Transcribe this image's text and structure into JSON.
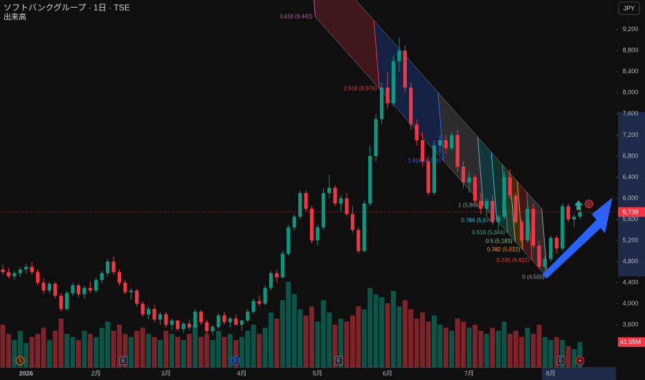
{
  "chart_data": {
    "type": "candlestick",
    "title": "ソフトバンクグループ · 1日 · TSE",
    "volume_title": "出来高",
    "currency": "JPY",
    "categories": [
      null,
      null,
      null,
      null,
      "2026",
      null,
      null,
      null,
      null,
      null,
      null,
      null,
      null,
      null,
      null,
      null,
      "2月",
      null,
      null,
      null,
      null,
      null,
      null,
      null,
      null,
      null,
      null,
      null,
      "3月",
      null,
      null,
      null,
      null,
      null,
      null,
      null,
      null,
      null,
      null,
      null,
      null,
      "4月",
      null,
      null,
      null,
      null,
      null,
      null,
      null,
      null,
      null,
      null,
      null,
      null,
      "5月",
      null,
      null,
      null,
      null,
      null,
      null,
      null,
      null,
      null,
      null,
      null,
      "6月",
      null,
      null,
      null,
      null,
      null,
      null,
      null,
      null,
      null,
      null,
      null,
      null,
      null,
      "7月",
      null,
      null,
      null,
      null,
      null,
      null,
      null,
      null,
      null,
      null,
      null,
      null,
      null,
      "8月",
      null,
      null,
      null,
      null,
      null
    ],
    "open": [
      4650,
      4600,
      4520,
      4580,
      4650,
      4700,
      4600,
      4400,
      4250,
      4380,
      4150,
      3900,
      4200,
      4350,
      4180,
      4300,
      4250,
      4450,
      4580,
      4800,
      4600,
      4400,
      4220,
      4250,
      4000,
      3800,
      3900,
      3700,
      3800,
      3600,
      3680,
      3520,
      3620,
      3550,
      3850,
      3650,
      3480,
      3560,
      3780,
      3650,
      3720,
      3600,
      3680,
      3850,
      4050,
      4000,
      4300,
      4580,
      4500,
      4950,
      5450,
      5650,
      6100,
      5800,
      5200,
      5450,
      6100,
      6200,
      5900,
      6000,
      5700,
      5400,
      5000,
      5900,
      6800,
      7500,
      8100,
      7800,
      8600,
      8800,
      8100,
      7400,
      7100,
      6700,
      6100,
      7000,
      7100,
      6950,
      7200,
      6600,
      6300,
      6400,
      5950,
      5800,
      5950,
      5550,
      5650,
      6400,
      6050,
      5550,
      5200,
      5800,
      5100,
      4700,
      4850,
      5250,
      5050,
      5850,
      5600,
      5650
    ],
    "high": [
      4750,
      4680,
      4620,
      4700,
      4760,
      4800,
      4650,
      4480,
      4420,
      4420,
      4200,
      4250,
      4400,
      4380,
      4350,
      4420,
      4500,
      4620,
      4850,
      4900,
      4650,
      4450,
      4300,
      4280,
      4050,
      3950,
      3980,
      3850,
      3850,
      3720,
      3700,
      3650,
      3700,
      3900,
      3880,
      3700,
      3600,
      3820,
      3850,
      3750,
      3800,
      3700,
      3900,
      4100,
      4150,
      4350,
      4620,
      4650,
      5000,
      5500,
      5700,
      6150,
      6150,
      5850,
      5500,
      6200,
      6450,
      6250,
      6050,
      6100,
      5850,
      5450,
      5950,
      7000,
      7600,
      8200,
      8400,
      8700,
      9050,
      8900,
      8200,
      7500,
      7250,
      6800,
      7100,
      7200,
      7200,
      7250,
      7300,
      6700,
      6500,
      6450,
      6100,
      6000,
      6050,
      5700,
      6500,
      6550,
      6100,
      5600,
      5950,
      5900,
      5200,
      4900,
      5300,
      5300,
      5900,
      5900,
      5700,
      5800
    ],
    "low": [
      4550,
      4480,
      4450,
      4500,
      4580,
      4550,
      4350,
      4180,
      4200,
      4100,
      3850,
      3880,
      4150,
      4120,
      4100,
      4200,
      4200,
      4380,
      4520,
      4550,
      4350,
      4180,
      4080,
      3950,
      3750,
      3700,
      3650,
      3600,
      3550,
      3500,
      3480,
      3450,
      3500,
      3530,
      3600,
      3420,
      3400,
      3520,
      3600,
      3550,
      3580,
      3480,
      3650,
      3820,
      3950,
      3980,
      4250,
      4400,
      4480,
      4900,
      5380,
      5600,
      5750,
      5150,
      5100,
      5400,
      6000,
      5850,
      5750,
      5650,
      5350,
      4950,
      4980,
      5850,
      6700,
      7400,
      7700,
      7750,
      8400,
      8000,
      7300,
      7000,
      6600,
      6050,
      6050,
      6850,
      6850,
      6900,
      6500,
      6200,
      6100,
      5900,
      5700,
      5650,
      5500,
      5400,
      5600,
      6000,
      5500,
      5150,
      5150,
      5050,
      4650,
      4500,
      4800,
      4950,
      5000,
      5550,
      5450,
      5600
    ],
    "close": [
      4600,
      4520,
      4580,
      4650,
      4700,
      4600,
      4400,
      4250,
      4380,
      4150,
      3900,
      4200,
      4350,
      4180,
      4300,
      4250,
      4450,
      4580,
      4800,
      4600,
      4400,
      4220,
      4250,
      4000,
      3800,
      3900,
      3700,
      3800,
      3600,
      3680,
      3520,
      3620,
      3550,
      3850,
      3650,
      3480,
      3560,
      3780,
      3650,
      3720,
      3600,
      3680,
      3850,
      4050,
      4000,
      4300,
      4580,
      4500,
      4950,
      5450,
      5650,
      6100,
      5800,
      5200,
      5450,
      6100,
      6200,
      5900,
      6000,
      5700,
      5400,
      5000,
      5900,
      6800,
      7500,
      8100,
      7800,
      8600,
      8800,
      8100,
      7400,
      7100,
      6700,
      6100,
      7000,
      7100,
      6950,
      7200,
      6600,
      6300,
      6400,
      5950,
      5800,
      5950,
      5550,
      5650,
      6400,
      6050,
      5550,
      5200,
      5800,
      5100,
      4700,
      4850,
      5250,
      5050,
      5850,
      5600,
      5650,
      5739
    ],
    "volume": [
      70,
      55,
      45,
      60,
      40,
      50,
      55,
      65,
      45,
      60,
      80,
      55,
      50,
      45,
      60,
      55,
      50,
      65,
      75,
      60,
      70,
      55,
      50,
      60,
      65,
      55,
      50,
      45,
      60,
      55,
      50,
      45,
      55,
      70,
      50,
      55,
      45,
      60,
      50,
      55,
      45,
      50,
      60,
      70,
      55,
      65,
      90,
      80,
      110,
      140,
      120,
      95,
      85,
      100,
      75,
      110,
      90,
      70,
      80,
      75,
      85,
      100,
      95,
      130,
      120,
      115,
      105,
      125,
      100,
      110,
      95,
      80,
      90,
      75,
      85,
      70,
      65,
      60,
      80,
      75,
      65,
      70,
      60,
      55,
      65,
      60,
      75,
      55,
      60,
      50,
      65,
      55,
      70,
      50,
      45,
      50,
      45,
      35,
      30,
      41.55
    ],
    "last_close_label": "5,739",
    "last_volume_label": "41.55M",
    "up_color": "#089981",
    "down_color": "#f23645",
    "ylim": [
      2750,
      9760
    ],
    "yticks": [
      {
        "value": 3600,
        "label": "3,600"
      },
      {
        "value": 4000,
        "label": "4,000"
      },
      {
        "value": 4400,
        "label": "4,400"
      },
      {
        "value": 4800,
        "label": "4,800"
      },
      {
        "value": 5200,
        "label": "5,200"
      },
      {
        "value": 5600,
        "label": "5,600"
      },
      {
        "value": 6000,
        "label": "6,000"
      },
      {
        "value": 6400,
        "label": "6,400"
      },
      {
        "value": 6800,
        "label": "6,800"
      },
      {
        "value": 7200,
        "label": "7,200"
      },
      {
        "value": 7600,
        "label": "7,600"
      },
      {
        "value": 8000,
        "label": "8,000"
      },
      {
        "value": 8400,
        "label": "8,400"
      },
      {
        "value": 8800,
        "label": "8,800"
      },
      {
        "value": 9200,
        "label": "9,200"
      }
    ],
    "volume_lim": [
      0,
      600
    ],
    "fib_levels": [
      {
        "value": 9442,
        "label": "3.618 (9,442)",
        "color": "#b05fa8"
      },
      {
        "value": 8076,
        "label": "2.618 (8,076)",
        "color": "#f23645"
      },
      {
        "value": 6710,
        "label": "1.618 (6,710)",
        "color": "#2962ff"
      },
      {
        "value": 5866,
        "label": "1 (5,866)",
        "color": "#9598a1"
      },
      {
        "value": 5574,
        "label": "0.786 (5,574)",
        "color": "#26c6da"
      },
      {
        "value": 5344,
        "label": "0.618 (5,344)",
        "color": "#22ab94"
      },
      {
        "value": 5183,
        "label": "0.5 (5,183)",
        "color": "#81c784"
      },
      {
        "value": 5022,
        "label": "0.382 (5,022)",
        "color": "#ff9800"
      },
      {
        "value": 4822,
        "label": "0.236 (4,822)",
        "color": "#f23645"
      },
      {
        "value": 4500,
        "label": "0 (4,500)",
        "color": "#9598a1"
      }
    ],
    "events": [
      "S",
      "E",
      "D",
      "E",
      "E"
    ],
    "badge": "D"
  }
}
